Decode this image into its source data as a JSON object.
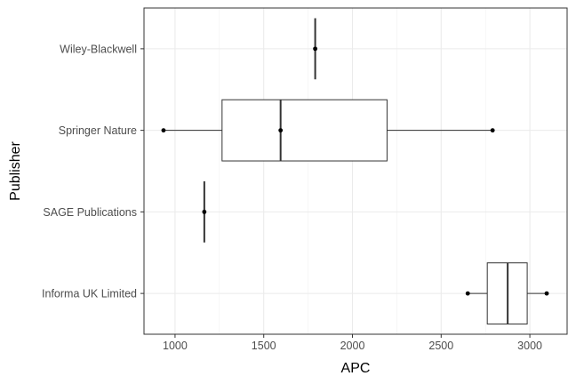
{
  "chart_data": {
    "type": "boxplot",
    "orientation": "horizontal",
    "xlabel": "APC",
    "ylabel": "Publisher",
    "xlim": [
      825,
      3210
    ],
    "x_ticks": [
      1000,
      1500,
      2000,
      2500,
      3000
    ],
    "x_tick_labels": [
      "1000",
      "1500",
      "2000",
      "2500",
      "3000"
    ],
    "grid": true,
    "categories": [
      "Informa UK Limited",
      "SAGE Publications",
      "Springer Nature",
      "Wiley-Blackwell"
    ],
    "boxes": [
      {
        "category": "Informa UK Limited",
        "min": 2650,
        "q1": 2760,
        "median": 2875,
        "q3": 2985,
        "max": 3095,
        "points": [
          2650,
          3095
        ]
      },
      {
        "category": "SAGE Publications",
        "min": 1165,
        "q1": 1165,
        "median": 1165,
        "q3": 1165,
        "max": 1165,
        "points": [
          1165
        ]
      },
      {
        "category": "Springer Nature",
        "min": 935,
        "q1": 1265,
        "median": 1595,
        "q3": 2195,
        "max": 2790,
        "points": [
          935,
          1595,
          2790
        ]
      },
      {
        "category": "Wiley-Blackwell",
        "min": 1790,
        "q1": 1790,
        "median": 1790,
        "q3": 1790,
        "max": 1790,
        "points": [
          1790
        ]
      }
    ]
  }
}
